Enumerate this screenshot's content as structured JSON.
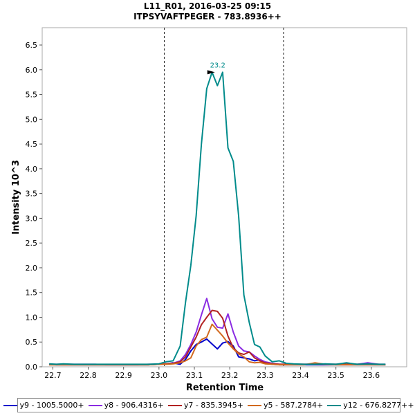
{
  "chart_data": {
    "type": "line",
    "title": "L11_R01, 2016-03-25 09:15",
    "subtitle": "ITPSYVAFTPEGER - 783.8936++",
    "xlabel": "Retention Time",
    "ylabel": "Intensity 10^3",
    "xlim": [
      22.67,
      23.7
    ],
    "ylim": [
      0,
      6.85
    ],
    "xticks": [
      "22.7",
      "22.8",
      "22.9",
      "23.0",
      "23.1",
      "23.2",
      "23.3",
      "23.4",
      "23.5",
      "23.6"
    ],
    "yticks": [
      "0.0",
      "0.5",
      "1.0",
      "1.5",
      "2.0",
      "2.5",
      "3.0",
      "3.5",
      "4.0",
      "4.5",
      "5.0",
      "5.5",
      "6.0",
      "6.5"
    ],
    "integration_bounds": [
      23.015,
      23.352
    ],
    "peak_annotation": {
      "label": "23.2",
      "x": 23.16,
      "y": 5.95
    },
    "x": [
      22.69,
      22.71,
      22.73,
      22.76,
      22.79,
      22.82,
      22.85,
      22.88,
      22.91,
      22.94,
      22.97,
      23.0,
      23.02,
      23.04,
      23.06,
      23.075,
      23.09,
      23.105,
      23.12,
      23.135,
      23.15,
      23.165,
      23.18,
      23.195,
      23.21,
      23.225,
      23.24,
      23.255,
      23.27,
      23.285,
      23.3,
      23.32,
      23.34,
      23.36,
      23.38,
      23.41,
      23.44,
      23.47,
      23.5,
      23.53,
      23.56,
      23.59,
      23.62,
      23.64
    ],
    "series": [
      {
        "name": "y9 - 1005.5000+",
        "color": "#0000cc",
        "values": [
          0.05,
          0.04,
          0.04,
          0.04,
          0.04,
          0.04,
          0.04,
          0.04,
          0.04,
          0.04,
          0.04,
          0.05,
          0.06,
          0.08,
          0.05,
          0.15,
          0.32,
          0.45,
          0.5,
          0.56,
          0.46,
          0.36,
          0.48,
          0.51,
          0.42,
          0.2,
          0.18,
          0.16,
          0.12,
          0.14,
          0.08,
          0.05,
          0.04,
          0.04,
          0.04,
          0.04,
          0.04,
          0.04,
          0.04,
          0.04,
          0.04,
          0.04,
          0.04,
          0.04
        ]
      },
      {
        "name": "y8 - 906.4316+",
        "color": "#8a2be2",
        "values": [
          0.05,
          0.05,
          0.05,
          0.05,
          0.05,
          0.05,
          0.04,
          0.04,
          0.04,
          0.04,
          0.05,
          0.05,
          0.06,
          0.07,
          0.12,
          0.25,
          0.45,
          0.7,
          1.05,
          1.38,
          0.97,
          0.8,
          0.78,
          1.07,
          0.7,
          0.42,
          0.32,
          0.3,
          0.22,
          0.15,
          0.1,
          0.07,
          0.05,
          0.05,
          0.05,
          0.05,
          0.05,
          0.05,
          0.05,
          0.05,
          0.05,
          0.08,
          0.05,
          0.05
        ]
      },
      {
        "name": "y7 - 835.3945+",
        "color": "#b22222",
        "values": [
          0.04,
          0.04,
          0.04,
          0.04,
          0.04,
          0.04,
          0.04,
          0.04,
          0.04,
          0.04,
          0.04,
          0.05,
          0.06,
          0.07,
          0.1,
          0.2,
          0.4,
          0.6,
          0.85,
          1.0,
          1.14,
          1.12,
          0.98,
          0.62,
          0.38,
          0.28,
          0.25,
          0.3,
          0.18,
          0.12,
          0.08,
          0.06,
          0.05,
          0.05,
          0.05,
          0.05,
          0.05,
          0.05,
          0.05,
          0.05,
          0.05,
          0.05,
          0.05,
          0.04
        ]
      },
      {
        "name": "y5 - 587.2784+",
        "color": "#d2691e",
        "values": [
          0.04,
          0.04,
          0.04,
          0.04,
          0.04,
          0.04,
          0.04,
          0.04,
          0.04,
          0.04,
          0.04,
          0.05,
          0.05,
          0.06,
          0.08,
          0.12,
          0.18,
          0.42,
          0.55,
          0.6,
          0.86,
          0.74,
          0.62,
          0.48,
          0.36,
          0.26,
          0.2,
          0.1,
          0.08,
          0.09,
          0.06,
          0.05,
          0.04,
          0.04,
          0.04,
          0.04,
          0.08,
          0.05,
          0.04,
          0.04,
          0.04,
          0.04,
          0.04,
          0.04
        ]
      },
      {
        "name": "y12 - 676.8277++",
        "color": "#008b8b",
        "values": [
          0.06,
          0.05,
          0.06,
          0.05,
          0.05,
          0.05,
          0.05,
          0.05,
          0.05,
          0.05,
          0.05,
          0.06,
          0.1,
          0.12,
          0.42,
          1.3,
          2.05,
          3.05,
          4.5,
          5.62,
          5.95,
          5.68,
          5.95,
          4.42,
          4.15,
          3.05,
          1.45,
          0.9,
          0.45,
          0.4,
          0.22,
          0.1,
          0.12,
          0.07,
          0.06,
          0.05,
          0.05,
          0.06,
          0.05,
          0.08,
          0.05,
          0.06,
          0.05,
          0.05
        ]
      }
    ]
  }
}
